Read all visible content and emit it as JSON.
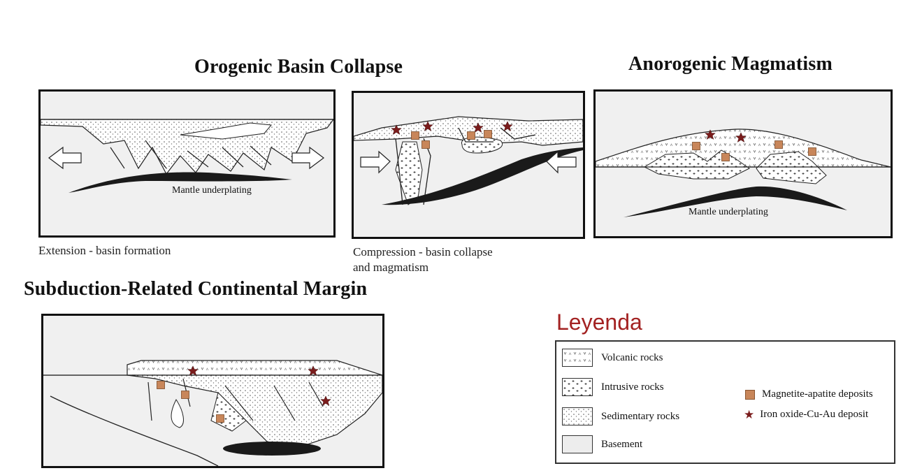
{
  "titles": {
    "orogenic": "Orogenic Basin Collapse",
    "anorogenic": "Anorogenic Magmatism",
    "subduction": "Subduction-Related Continental Margin"
  },
  "panels": {
    "extension": {
      "label": "Mantle underplating",
      "caption": "Extension - basin formation"
    },
    "compression": {
      "caption_line1": "Compression - basin collapse",
      "caption_line2": "and magmatism"
    },
    "anorogenic": {
      "label": "Mantle underplating"
    }
  },
  "legend": {
    "title": "Leyenda",
    "rocks": [
      {
        "label": "Volcanic rocks",
        "pattern": "volcanic"
      },
      {
        "label": "Intrusive rocks",
        "pattern": "intrusive"
      },
      {
        "label": "Sedimentary rocks",
        "pattern": "sedimentary"
      },
      {
        "label": "Basement",
        "pattern": "basement"
      }
    ],
    "deposits": [
      {
        "label": "Magnetite-apatite deposits",
        "symbol": "square"
      },
      {
        "label": "Iron oxide-Cu-Au deposit",
        "symbol": "star"
      }
    ]
  },
  "colors": {
    "title_red": "#a32222",
    "deposit_square": "#c8865a",
    "deposit_star": "#7a1c1c",
    "basement": "#ededed",
    "underplating": "#1a1a1a"
  }
}
